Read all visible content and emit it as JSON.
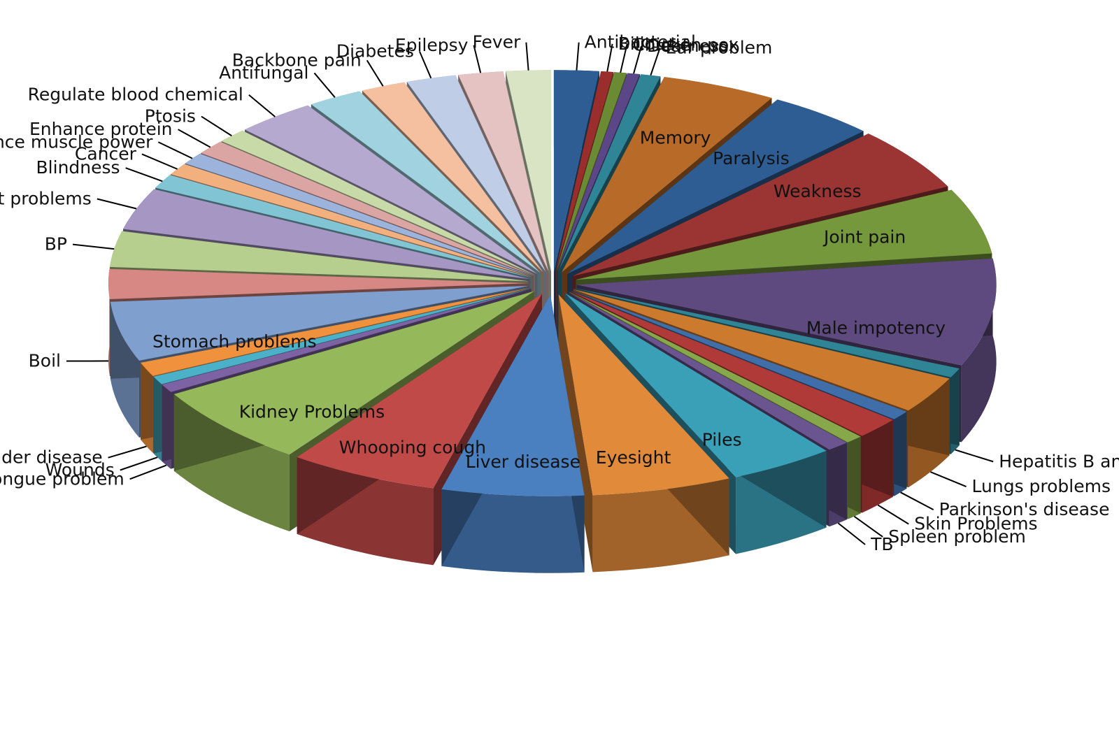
{
  "chart_data": {
    "type": "pie",
    "title": "",
    "variant": "3d-exploded",
    "slices": [
      {
        "label": "Antibacterial",
        "value": 1.8,
        "color": "#2e5d94"
      },
      {
        "label": "Bilious",
        "value": 0.5,
        "color": "#9a2e2c"
      },
      {
        "label": "Chicken pox",
        "value": 0.5,
        "color": "#6a8a33"
      },
      {
        "label": "Deafness",
        "value": 0.5,
        "color": "#5b4688"
      },
      {
        "label": "Ear problem",
        "value": 0.8,
        "color": "#2f8496"
      },
      {
        "label": "Memory",
        "value": 4.6,
        "color": "#b86a28"
      },
      {
        "label": "Paralysis",
        "value": 4.3,
        "color": "#2e5d94"
      },
      {
        "label": "Weakness",
        "value": 5.4,
        "color": "#9a3533"
      },
      {
        "label": "Joint pain",
        "value": 5.5,
        "color": "#76983c"
      },
      {
        "label": "Male impotency",
        "value": 9.0,
        "color": "#5e4a7e"
      },
      {
        "label": "Hepatitis  B and C",
        "value": 0.8,
        "color": "#2f8496"
      },
      {
        "label": "Lungs problems",
        "value": 3.1,
        "color": "#cc7a2e"
      },
      {
        "label": "Parkinson's disease",
        "value": 0.8,
        "color": "#3f6ea8"
      },
      {
        "label": "Skin Problems",
        "value": 1.8,
        "color": "#b03a38"
      },
      {
        "label": "Spleen problem",
        "value": 0.7,
        "color": "#87a84a"
      },
      {
        "label": "TB",
        "value": 0.9,
        "color": "#6a5591"
      },
      {
        "label": "Piles",
        "value": 4.2,
        "color": "#3aa0b8"
      },
      {
        "label": "Eyesight",
        "value": 5.6,
        "color": "#e08a3a"
      },
      {
        "label": "Liver disease",
        "value": 5.7,
        "color": "#4a7fc0"
      },
      {
        "label": "Whooping cough",
        "value": 6.0,
        "color": "#c04a48"
      },
      {
        "label": "Kidney Problems",
        "value": 6.8,
        "color": "#95b95a"
      },
      {
        "label": "Tongue problem",
        "value": 0.7,
        "color": "#7d63a3"
      },
      {
        "label": "Wounds",
        "value": 0.7,
        "color": "#4ab1c8"
      },
      {
        "label": "Bladder disease",
        "value": 1.2,
        "color": "#f0913e"
      },
      {
        "label": "Stomach problems",
        "value": 5.0,
        "color": "#7f9fcf"
      },
      {
        "label": "Boil",
        "value": 2.5,
        "color": "#d88884"
      },
      {
        "label": "BP",
        "value": 3.0,
        "color": "#b7cf8e"
      },
      {
        "label": "Heart problems",
        "value": 3.5,
        "color": "#a596c4"
      },
      {
        "label": "Blindness",
        "value": 1.2,
        "color": "#81c4d4"
      },
      {
        "label": "Cancer",
        "value": 1.0,
        "color": "#f3b07f"
      },
      {
        "label": "Enhance muscle power",
        "value": 1.0,
        "color": "#9cb3dc"
      },
      {
        "label": "Enhance protein",
        "value": 1.2,
        "color": "#dba5a3"
      },
      {
        "label": "Ptosis",
        "value": 1.2,
        "color": "#c9daa9"
      },
      {
        "label": "Regulate blood chemical",
        "value": 3.2,
        "color": "#b6a9cf"
      },
      {
        "label": "Antifungal",
        "value": 2.2,
        "color": "#a1d2df"
      },
      {
        "label": "Backbone pain",
        "value": 1.8,
        "color": "#f5c0a0"
      },
      {
        "label": "Diabetes",
        "value": 2.0,
        "color": "#c0cde6"
      },
      {
        "label": "Epilepsy",
        "value": 1.8,
        "color": "#e5c3c2"
      },
      {
        "label": "Fever",
        "value": 1.8,
        "color": "#d8e4c4"
      }
    ],
    "legend": "none",
    "labels": "category names next to slices"
  }
}
